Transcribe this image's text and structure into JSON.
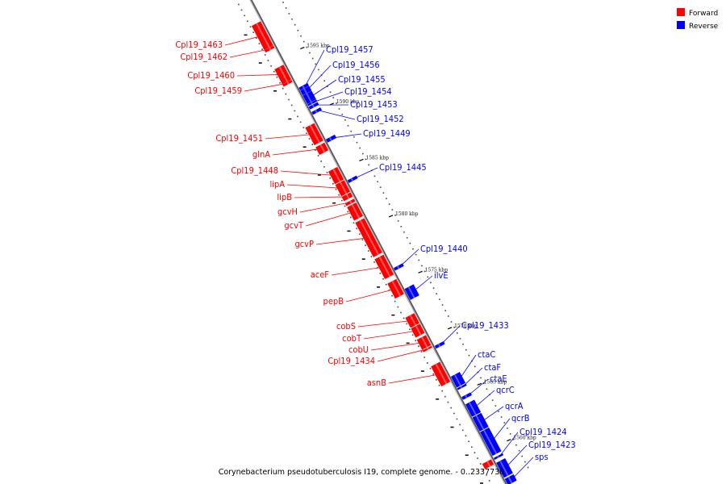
{
  "caption": "Corynebacterium pseudotuberculosis I19, complete genome. - 0..2337730",
  "legend": [
    {
      "label": "Forward",
      "color": "#ff0000"
    },
    {
      "label": "Reverse",
      "color": "#0000ff"
    }
  ],
  "colors": {
    "forward": "#ff0000",
    "reverse": "#0000ff",
    "backbone": "#808080"
  },
  "kbp_ticks": [
    {
      "label": "1600 kbp",
      "t": 0.01
    },
    {
      "label": "1595 kbp",
      "t": 0.125
    },
    {
      "label": "1590 kbp",
      "t": 0.24
    },
    {
      "label": "1585 kbp",
      "t": 0.355
    },
    {
      "label": "1580 kbp",
      "t": 0.47
    },
    {
      "label": "1575 kbp",
      "t": 0.585
    },
    {
      "label": "1570 kbp",
      "t": 0.7
    },
    {
      "label": "1565 kbp",
      "t": 0.815
    },
    {
      "label": "1560 kbp",
      "t": 0.93
    }
  ],
  "forward_genes": [
    {
      "name": "Cpl19_1463",
      "t0": 0.046,
      "t1": 0.095
    },
    {
      "name": "Cpl19_1462",
      "t0": 0.096,
      "t1": 0.1
    },
    {
      "name": "Cpl19_1460",
      "t0": 0.135,
      "t1": 0.165
    },
    {
      "name": "Cpl19_1459",
      "t0": 0.166,
      "t1": 0.17
    },
    {
      "name": "Cpl19_1451",
      "t0": 0.255,
      "t1": 0.29
    },
    {
      "name": "glnA",
      "t0": 0.295,
      "t1": 0.31
    },
    {
      "name": "Cpl19_1448",
      "t0": 0.345,
      "t1": 0.37
    },
    {
      "name": "lipA",
      "t0": 0.372,
      "t1": 0.395
    },
    {
      "name": "lipB",
      "t0": 0.397,
      "t1": 0.405
    },
    {
      "name": "gcvH",
      "t0": 0.41,
      "t1": 0.415
    },
    {
      "name": "gcvT",
      "t0": 0.418,
      "t1": 0.445
    },
    {
      "name": "gcvP",
      "t0": 0.45,
      "t1": 0.52
    },
    {
      "name": "aceF",
      "t0": 0.525,
      "t1": 0.565
    },
    {
      "name": "pepB",
      "t0": 0.575,
      "t1": 0.605
    },
    {
      "name": "cobS",
      "t0": 0.645,
      "t1": 0.665
    },
    {
      "name": "cobT",
      "t0": 0.667,
      "t1": 0.685
    },
    {
      "name": "cobU",
      "t0": 0.69,
      "t1": 0.71
    },
    {
      "name": "Cpl19_1434",
      "t0": 0.712,
      "t1": 0.715
    },
    {
      "name": "asnB",
      "t0": 0.745,
      "t1": 0.785
    },
    {
      "name": "",
      "t0": 0.945,
      "t1": 0.955
    }
  ],
  "reverse_genes": [
    {
      "name": "Cpl19_1457",
      "t0": 0.185,
      "t1": 0.19
    },
    {
      "name": "Cpl19_1456",
      "t0": 0.191,
      "t1": 0.2
    },
    {
      "name": "Cpl19_1455",
      "t0": 0.201,
      "t1": 0.218
    },
    {
      "name": "Cpl19_1454",
      "t0": 0.219,
      "t1": 0.222
    },
    {
      "name": "Cpl19_1453",
      "t0": 0.224,
      "t1": 0.229
    },
    {
      "name": "Cpl19_1452",
      "t0": 0.235,
      "t1": 0.24
    },
    {
      "name": "Cpl19_1449",
      "t0": 0.291,
      "t1": 0.297
    },
    {
      "name": "Cpl19_1445",
      "t0": 0.375,
      "t1": 0.38
    },
    {
      "name": "Cpl19_1440",
      "t0": 0.555,
      "t1": 0.56
    },
    {
      "name": "ilvE",
      "t0": 0.598,
      "t1": 0.62
    },
    {
      "name": "Cpl19_1433",
      "t0": 0.715,
      "t1": 0.72
    },
    {
      "name": "ctaC",
      "t0": 0.778,
      "t1": 0.8
    },
    {
      "name": "ctaF",
      "t0": 0.802,
      "t1": 0.805
    },
    {
      "name": "ctaE",
      "t0": 0.82,
      "t1": 0.825
    },
    {
      "name": "qcrC",
      "t0": 0.835,
      "t1": 0.86
    },
    {
      "name": "qcrA",
      "t0": 0.862,
      "t1": 0.89
    },
    {
      "name": "qcrB",
      "t0": 0.892,
      "t1": 0.94
    },
    {
      "name": "Cpl19_1424",
      "t0": 0.945,
      "t1": 0.948
    },
    {
      "name": "Cpl19_1423",
      "t0": 0.955,
      "t1": 0.985
    },
    {
      "name": "sps",
      "t0": 0.988,
      "t1": 1.0
    }
  ]
}
